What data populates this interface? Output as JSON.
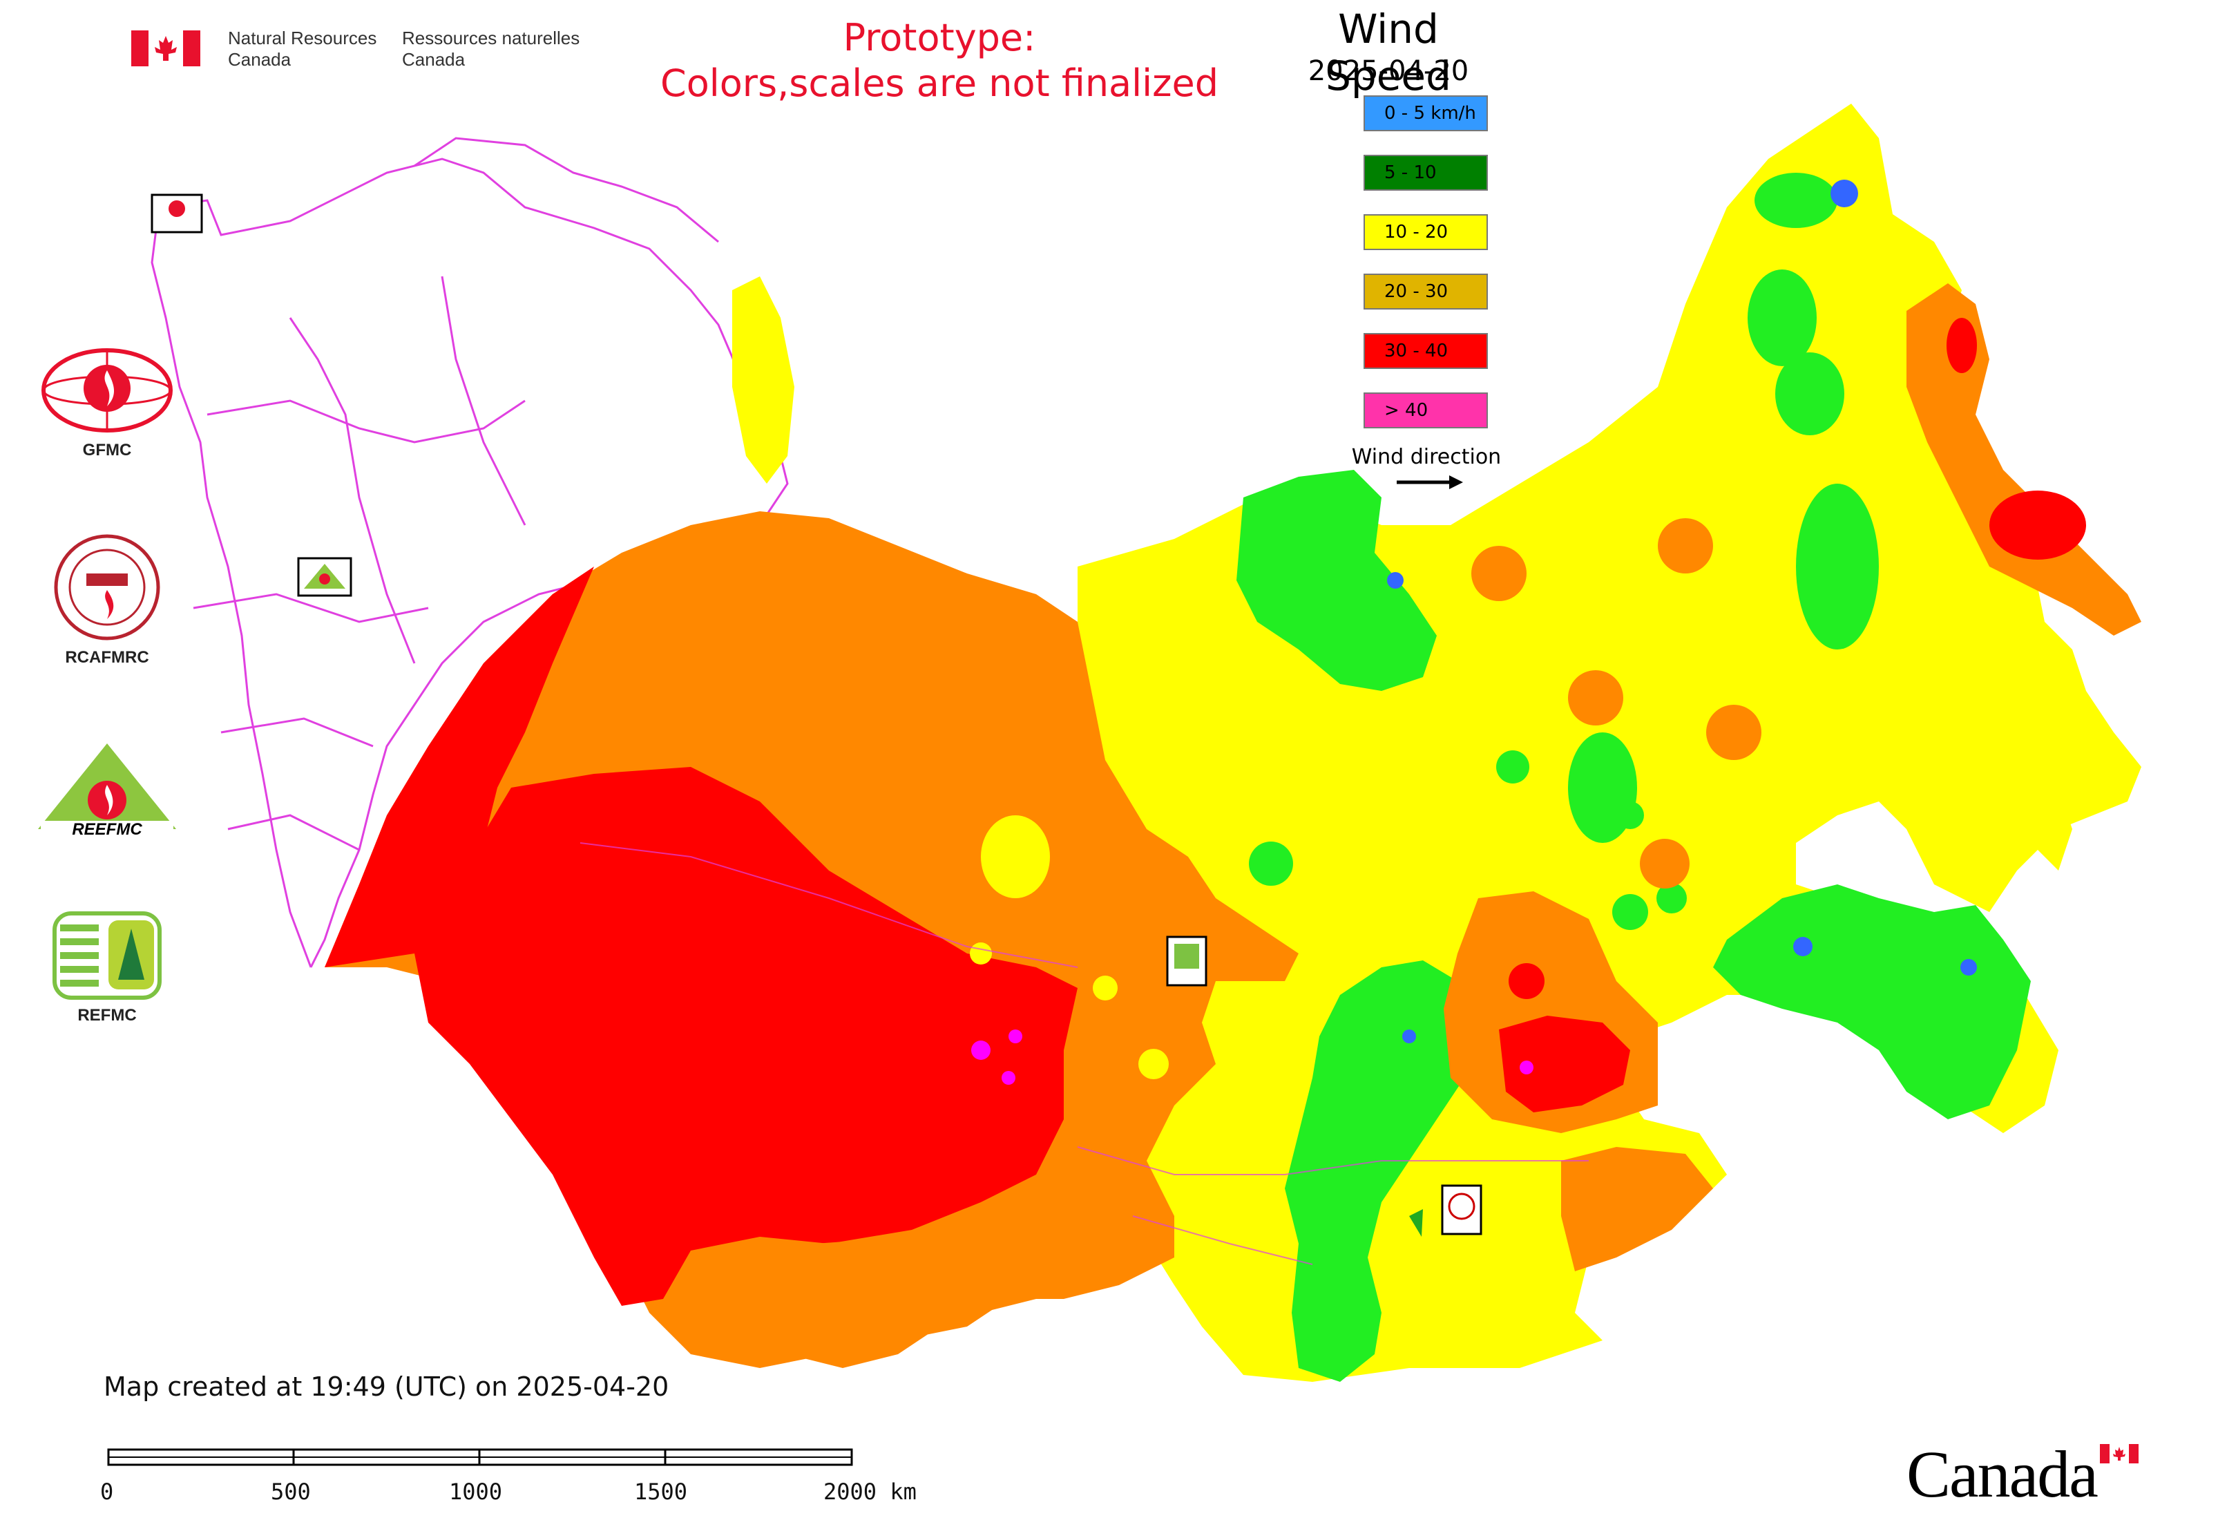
{
  "header": {
    "agency_en_line1": "Natural Resources",
    "agency_en_line2": "Canada",
    "agency_fr_line1": "Ressources naturelles",
    "agency_fr_line2": "Canada",
    "prototype_line1": "Prototype:",
    "prototype_line2": "Colors,scales are not finalized"
  },
  "legend": {
    "title": "Wind Speed",
    "date": "2025-04-20",
    "items": [
      {
        "label": "0 - 5 km/h",
        "color": "#3399ff"
      },
      {
        "label": "5 - 10",
        "color": "#008000"
      },
      {
        "label": "10 - 20",
        "color": "#ffff00"
      },
      {
        "label": "20 - 30",
        "color": "#e0b400"
      },
      {
        "label": "30 - 40",
        "color": "#ff0000"
      },
      {
        "label": "> 40",
        "color": "#ff33aa"
      }
    ],
    "wind_direction_label": "Wind direction"
  },
  "map_colors": {
    "calm_blue": "#3366ff",
    "green": "#22ee22",
    "yellow": "#ffff00",
    "orange": "#ff8800",
    "red": "#ff0000",
    "magenta": "#ff00ff",
    "border": "#e040e0"
  },
  "side_logos": [
    {
      "name": "GFMC"
    },
    {
      "name": "RCAFMRC"
    },
    {
      "name": "REEFMC"
    },
    {
      "name": "REFMC"
    }
  ],
  "footer": {
    "created_text": "Map created at 19:49 (UTC) on 2025-04-20",
    "scale_ticks": [
      "0",
      "500",
      "1000",
      "1500",
      "2000 km"
    ],
    "wordmark": "Canada"
  }
}
